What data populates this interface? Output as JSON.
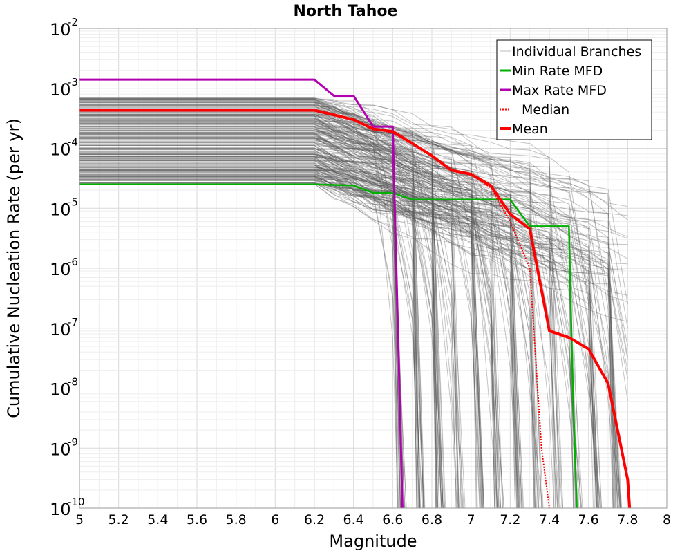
{
  "chart_data": {
    "type": "line",
    "title": "North Tahoe",
    "xlabel": "Magnitude",
    "ylabel": "Cumulative Nucleation Rate (per yr)",
    "xlim": [
      5,
      8
    ],
    "ylim": [
      1e-10,
      0.01
    ],
    "yscale": "log",
    "grid": true,
    "legend_position": "top-right",
    "x_ticks": [
      "5",
      "5.2",
      "5.4",
      "5.6",
      "5.8",
      "6",
      "6.2",
      "6.4",
      "6.6",
      "6.8",
      "7",
      "7.2",
      "7.4",
      "7.6",
      "7.8",
      "8"
    ],
    "y_ticks": [
      {
        "base": "10",
        "exp": "-2"
      },
      {
        "base": "10",
        "exp": "-3"
      },
      {
        "base": "10",
        "exp": "-4"
      },
      {
        "base": "10",
        "exp": "-5"
      },
      {
        "base": "10",
        "exp": "-6"
      },
      {
        "base": "10",
        "exp": "-7"
      },
      {
        "base": "10",
        "exp": "-8"
      },
      {
        "base": "10",
        "exp": "-9"
      },
      {
        "base": "10",
        "exp": "-10"
      }
    ],
    "series": [
      {
        "name": "Individual Branches",
        "color": "#555555",
        "style": "thin",
        "description_values": "many branches spanning between the min and max curves"
      },
      {
        "name": "Min Rate MFD",
        "color": "#00b000",
        "x": [
          5.0,
          6.2,
          6.4,
          6.5,
          6.6,
          6.7,
          6.8,
          7.0,
          7.1,
          7.2,
          7.3,
          7.4,
          7.5,
          7.52,
          7.54
        ],
        "y": [
          2.5e-05,
          2.5e-05,
          2.4e-05,
          1.8e-05,
          1.8e-05,
          1.4e-05,
          1.4e-05,
          1.4e-05,
          1.4e-05,
          1.4e-05,
          5e-06,
          5e-06,
          5e-06,
          1e-08,
          1e-10
        ]
      },
      {
        "name": "Max Rate MFD",
        "color": "#b000b0",
        "x": [
          5.0,
          6.2,
          6.3,
          6.4,
          6.5,
          6.6,
          6.65
        ],
        "y": [
          0.0014,
          0.0014,
          0.00075,
          0.00075,
          0.00023,
          0.00023,
          1e-10
        ]
      },
      {
        "name": "Median",
        "color": "#ff0000",
        "dashed": true,
        "x": [
          5.0,
          6.2,
          6.3,
          6.4,
          6.5,
          6.6,
          6.7,
          6.8,
          6.9,
          7.0,
          7.1,
          7.2,
          7.3,
          7.32,
          7.36,
          7.4
        ],
        "y": [
          0.00043,
          0.00043,
          0.00036,
          0.0003,
          0.00021,
          0.00018,
          0.00012,
          7.5e-05,
          4.3e-05,
          3.7e-05,
          2.2e-05,
          6e-06,
          1e-06,
          1e-07,
          1e-09,
          1e-10
        ]
      },
      {
        "name": "Mean",
        "color": "#ff0000",
        "x": [
          5.0,
          6.2,
          6.3,
          6.4,
          6.5,
          6.6,
          6.7,
          6.8,
          6.9,
          7.0,
          7.1,
          7.2,
          7.3,
          7.4,
          7.5,
          7.6,
          7.7,
          7.8,
          7.81
        ],
        "y": [
          0.00043,
          0.00043,
          0.00036,
          0.0003,
          0.00021,
          0.00019,
          0.00012,
          7.5e-05,
          4.3e-05,
          3.7e-05,
          2.4e-05,
          8e-06,
          4.5e-06,
          9e-08,
          7e-08,
          4.5e-08,
          1.2e-08,
          3e-10,
          1e-10
        ]
      }
    ]
  }
}
